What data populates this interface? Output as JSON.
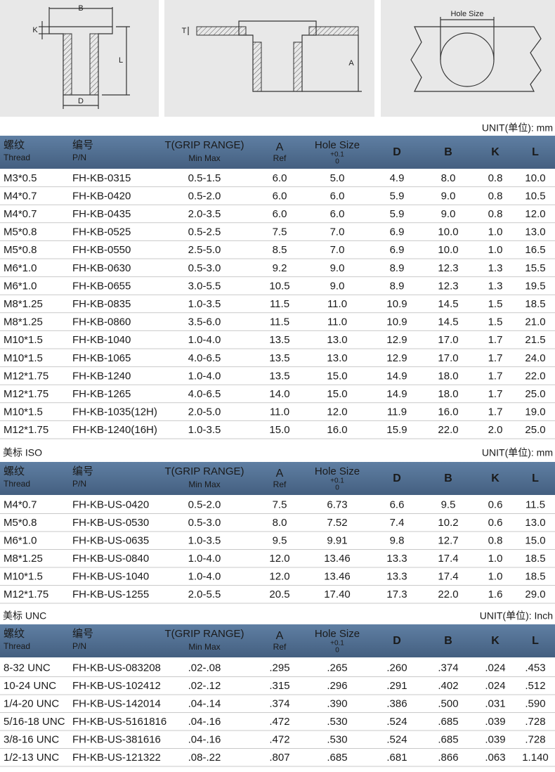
{
  "drawings": {
    "rivet": {
      "labels": [
        "B",
        "K",
        "L",
        "D"
      ]
    },
    "installed": {
      "labels": [
        "T",
        "A"
      ]
    },
    "hole": {
      "labels": [
        "Hole Size"
      ]
    }
  },
  "column_headers": [
    {
      "cn": "螺纹",
      "en": "Thread"
    },
    {
      "cn": "编号",
      "en": "P/N"
    },
    {
      "main": "T(GRIP RANGE)",
      "sub": "Min Max"
    },
    {
      "main": "A",
      "sub": "Ref"
    },
    {
      "main": "Hole Size",
      "tol_upper": "+0.1",
      "tol_lower": "0"
    },
    {
      "main": "D"
    },
    {
      "main": "B"
    },
    {
      "main": "K"
    },
    {
      "main": "L"
    }
  ],
  "tables": [
    {
      "unit": "UNIT(单位): mm",
      "rows": [
        [
          "M3*0.5",
          "FH-KB-0315",
          "0.5-1.5",
          "6.0",
          "5.0",
          "4.9",
          "8.0",
          "0.8",
          "10.0"
        ],
        [
          "M4*0.7",
          "FH-KB-0420",
          "0.5-2.0",
          "6.0",
          "6.0",
          "5.9",
          "9.0",
          "0.8",
          "10.5"
        ],
        [
          "M4*0.7",
          "FH-KB-0435",
          "2.0-3.5",
          "6.0",
          "6.0",
          "5.9",
          "9.0",
          "0.8",
          "12.0"
        ],
        [
          "M5*0.8",
          "FH-KB-0525",
          "0.5-2.5",
          "7.5",
          "7.0",
          "6.9",
          "10.0",
          "1.0",
          "13.0"
        ],
        [
          "M5*0.8",
          "FH-KB-0550",
          "2.5-5.0",
          "8.5",
          "7.0",
          "6.9",
          "10.0",
          "1.0",
          "16.5"
        ],
        [
          "M6*1.0",
          "FH-KB-0630",
          "0.5-3.0",
          "9.2",
          "9.0",
          "8.9",
          "12.3",
          "1.3",
          "15.5"
        ],
        [
          "M6*1.0",
          "FH-KB-0655",
          "3.0-5.5",
          "10.5",
          "9.0",
          "8.9",
          "12.3",
          "1.3",
          "19.5"
        ],
        [
          "M8*1.25",
          "FH-KB-0835",
          "1.0-3.5",
          "11.5",
          "11.0",
          "10.9",
          "14.5",
          "1.5",
          "18.5"
        ],
        [
          "M8*1.25",
          "FH-KB-0860",
          "3.5-6.0",
          "11.5",
          "11.0",
          "10.9",
          "14.5",
          "1.5",
          "21.0"
        ],
        [
          "M10*1.5",
          "FH-KB-1040",
          "1.0-4.0",
          "13.5",
          "13.0",
          "12.9",
          "17.0",
          "1.7",
          "21.5"
        ],
        [
          "M10*1.5",
          "FH-KB-1065",
          "4.0-6.5",
          "13.5",
          "13.0",
          "12.9",
          "17.0",
          "1.7",
          "24.0"
        ],
        [
          "M12*1.75",
          "FH-KB-1240",
          "1.0-4.0",
          "13.5",
          "15.0",
          "14.9",
          "18.0",
          "1.7",
          "22.0"
        ],
        [
          "M12*1.75",
          "FH-KB-1265",
          "4.0-6.5",
          "14.0",
          "15.0",
          "14.9",
          "18.0",
          "1.7",
          "25.0"
        ],
        [
          "M10*1.5",
          "FH-KB-1035(12H)",
          "2.0-5.0",
          "11.0",
          "12.0",
          "11.9",
          "16.0",
          "1.7",
          "19.0"
        ],
        [
          "M12*1.75",
          "FH-KB-1240(16H)",
          "1.0-3.5",
          "15.0",
          "16.0",
          "15.9",
          "22.0",
          "2.0",
          "25.0"
        ]
      ]
    },
    {
      "section": "美标 ISO",
      "unit": "UNIT(单位): mm",
      "rows": [
        [
          "M4*0.7",
          "FH-KB-US-0420",
          "0.5-2.0",
          "7.5",
          "6.73",
          "6.6",
          "9.5",
          "0.6",
          "11.5"
        ],
        [
          "M5*0.8",
          "FH-KB-US-0530",
          "0.5-3.0",
          "8.0",
          "7.52",
          "7.4",
          "10.2",
          "0.6",
          "13.0"
        ],
        [
          "M6*1.0",
          "FH-KB-US-0635",
          "1.0-3.5",
          "9.5",
          "9.91",
          "9.8",
          "12.7",
          "0.8",
          "15.0"
        ],
        [
          "M8*1.25",
          "FH-KB-US-0840",
          "1.0-4.0",
          "12.0",
          "13.46",
          "13.3",
          "17.4",
          "1.0",
          "18.5"
        ],
        [
          "M10*1.5",
          "FH-KB-US-1040",
          "1.0-4.0",
          "12.0",
          "13.46",
          "13.3",
          "17.4",
          "1.0",
          "18.5"
        ],
        [
          "M12*1.75",
          "FH-KB-US-1255",
          "2.0-5.5",
          "20.5",
          "17.40",
          "17.3",
          "22.0",
          "1.6",
          "29.0"
        ]
      ]
    },
    {
      "section": "美标 UNC",
      "unit": "UNIT(单位): Inch",
      "rows": [
        [
          "8-32 UNC",
          "FH-KB-US-083208",
          ".02-.08",
          ".295",
          ".265",
          ".260",
          ".374",
          ".024",
          ".453"
        ],
        [
          "10-24 UNC",
          "FH-KB-US-102412",
          ".02-.12",
          ".315",
          ".296",
          ".291",
          ".402",
          ".024",
          ".512"
        ],
        [
          "1/4-20 UNC",
          "FH-KB-US-142014",
          ".04-.14",
          ".374",
          ".390",
          ".386",
          ".500",
          ".031",
          ".590"
        ],
        [
          "5/16-18 UNC",
          "FH-KB-US-5161816",
          ".04-.16",
          ".472",
          ".530",
          ".524",
          ".685",
          ".039",
          ".728"
        ],
        [
          "3/8-16 UNC",
          "FH-KB-US-381616",
          ".04-.16",
          ".472",
          ".530",
          ".524",
          ".685",
          ".039",
          ".728"
        ],
        [
          "1/2-13 UNC",
          "FH-KB-US-121322",
          ".08-.22",
          ".807",
          ".685",
          ".681",
          ".866",
          ".063",
          "1.140"
        ]
      ]
    }
  ]
}
